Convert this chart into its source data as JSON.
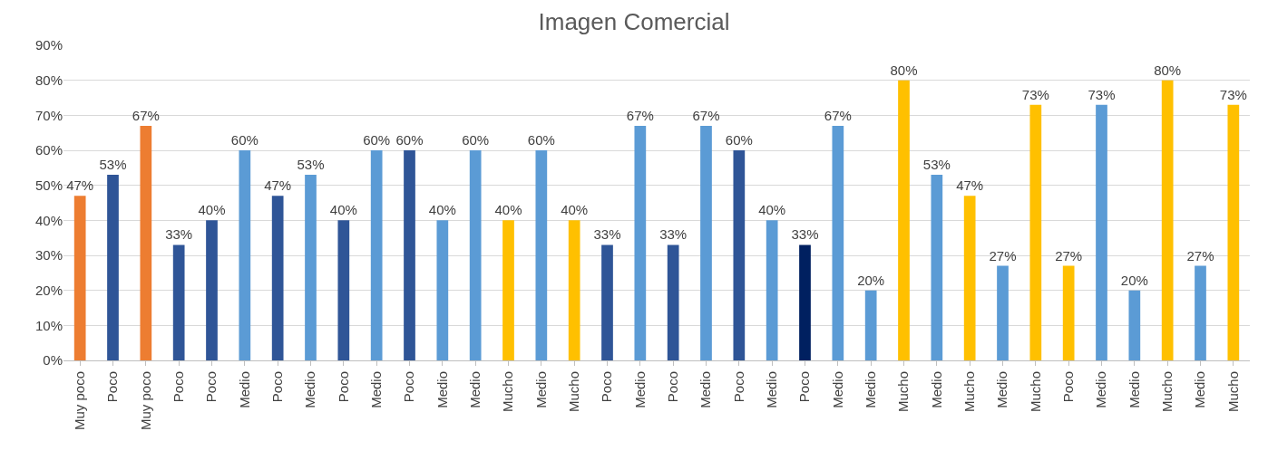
{
  "chart_data": {
    "type": "bar",
    "title": "Imagen Comercial",
    "categories": [
      "Muy poco",
      "Poco",
      "Muy poco",
      "Poco",
      "Poco",
      "Medio",
      "Poco",
      "Medio",
      "Poco",
      "Medio",
      "Poco",
      "Medio",
      "Medio",
      "Mucho",
      "Medio",
      "Mucho",
      "Poco",
      "Medio",
      "Poco",
      "Medio",
      "Poco",
      "Medio",
      "Poco",
      "Medio",
      "Medio",
      "Mucho",
      "Medio",
      "Mucho",
      "Medio",
      "Mucho",
      "Poco",
      "Medio",
      "Medio",
      "Mucho",
      "Medio",
      "Mucho"
    ],
    "values": [
      47,
      53,
      67,
      33,
      40,
      60,
      47,
      53,
      40,
      60,
      60,
      40,
      60,
      40,
      60,
      40,
      33,
      67,
      33,
      67,
      60,
      40,
      33,
      67,
      20,
      80,
      53,
      47,
      27,
      73,
      27,
      73,
      20,
      80,
      27,
      73
    ],
    "value_labels": [
      "47%",
      "53%",
      "67%",
      "33%",
      "40%",
      "60%",
      "47%",
      "53%",
      "40%",
      "60%",
      "60%",
      "40%",
      "60%",
      "40%",
      "60%",
      "40%",
      "33%",
      "67%",
      "33%",
      "67%",
      "60%",
      "40%",
      "33%",
      "67%",
      "20%",
      "80%",
      "53%",
      "47%",
      "27%",
      "73%",
      "27%",
      "73%",
      "20%",
      "80%",
      "27%",
      "73%"
    ],
    "colors": [
      "#ed7d31",
      "#2f5597",
      "#ed7d31",
      "#2f5597",
      "#2f5597",
      "#5b9bd5",
      "#2f5597",
      "#5b9bd5",
      "#2f5597",
      "#5b9bd5",
      "#2f5597",
      "#5b9bd5",
      "#5b9bd5",
      "#ffc000",
      "#5b9bd5",
      "#ffc000",
      "#2f5597",
      "#5b9bd5",
      "#2f5597",
      "#5b9bd5",
      "#2f5597",
      "#5b9bd5",
      "#002060",
      "#5b9bd5",
      "#5b9bd5",
      "#ffc000",
      "#5b9bd5",
      "#ffc000",
      "#5b9bd5",
      "#ffc000",
      "#ffc000",
      "#5b9bd5",
      "#5b9bd5",
      "#ffc000",
      "#5b9bd5",
      "#ffc000"
    ],
    "ylim": [
      0,
      90
    ],
    "yticks": [
      {
        "value": 0,
        "label": "0%"
      },
      {
        "value": 10,
        "label": "10%"
      },
      {
        "value": 20,
        "label": "20%"
      },
      {
        "value": 30,
        "label": "30%"
      },
      {
        "value": 40,
        "label": "40%"
      },
      {
        "value": 50,
        "label": "50%"
      },
      {
        "value": 60,
        "label": "60%"
      },
      {
        "value": 70,
        "label": "70%"
      },
      {
        "value": 80,
        "label": "80%"
      },
      {
        "value": 90,
        "label": "90%"
      }
    ],
    "grid": "y",
    "legend": false
  }
}
